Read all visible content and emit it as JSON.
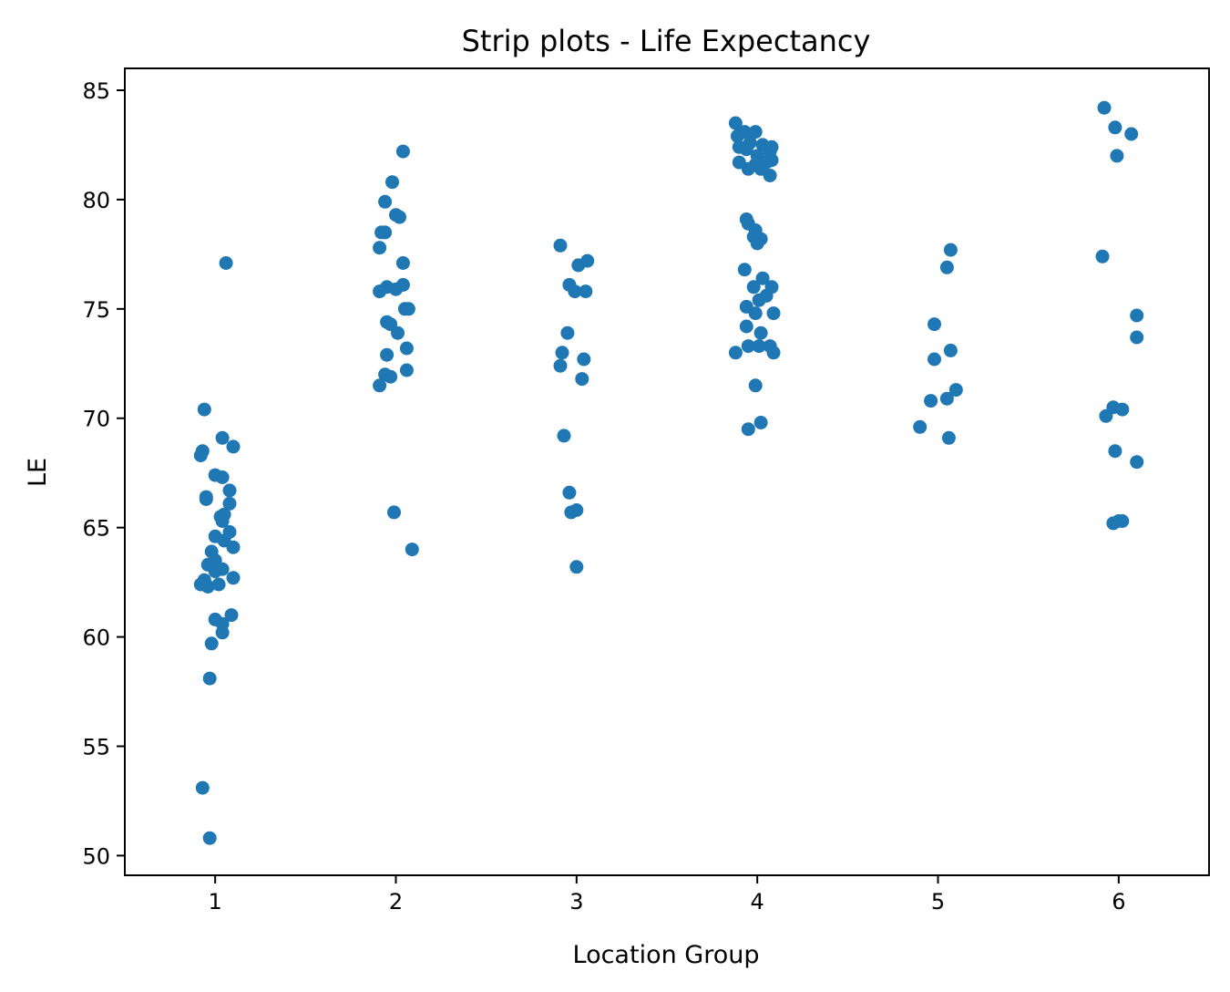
{
  "chart_data": {
    "type": "scatter",
    "title": "Strip plots - Life Expectancy",
    "xlabel": "Location Group",
    "ylabel": "LE",
    "xlim": [
      0.5,
      6.5
    ],
    "ylim": [
      49.1,
      86.0
    ],
    "x_ticks": [
      1,
      2,
      3,
      4,
      5,
      6
    ],
    "y_ticks": [
      50,
      55,
      60,
      65,
      70,
      75,
      80,
      85
    ],
    "grid": false,
    "legend": "none",
    "color": "#1f77b4",
    "series": [
      {
        "points": [
          [
            1.06,
            77.1
          ],
          [
            0.94,
            70.4
          ],
          [
            1.04,
            69.1
          ],
          [
            1.1,
            68.7
          ],
          [
            0.93,
            68.5
          ],
          [
            0.92,
            68.3
          ],
          [
            1.0,
            67.4
          ],
          [
            1.04,
            67.3
          ],
          [
            1.08,
            66.7
          ],
          [
            0.95,
            66.4
          ],
          [
            0.95,
            66.3
          ],
          [
            1.08,
            66.1
          ],
          [
            1.05,
            65.6
          ],
          [
            1.03,
            65.5
          ],
          [
            1.04,
            65.3
          ],
          [
            1.08,
            64.8
          ],
          [
            1.0,
            64.6
          ],
          [
            1.05,
            64.4
          ],
          [
            1.1,
            64.1
          ],
          [
            0.98,
            63.9
          ],
          [
            1.0,
            63.5
          ],
          [
            0.96,
            63.3
          ],
          [
            1.04,
            63.1
          ],
          [
            1.0,
            63.0
          ],
          [
            1.1,
            62.7
          ],
          [
            0.94,
            62.6
          ],
          [
            0.92,
            62.4
          ],
          [
            0.96,
            62.3
          ],
          [
            1.02,
            62.4
          ],
          [
            1.09,
            61.0
          ],
          [
            1.0,
            60.8
          ],
          [
            1.04,
            60.6
          ],
          [
            1.04,
            60.2
          ],
          [
            0.98,
            59.7
          ],
          [
            0.97,
            58.1
          ],
          [
            0.93,
            53.1
          ],
          [
            0.97,
            50.8
          ],
          [
            2.04,
            82.2
          ],
          [
            1.98,
            80.8
          ],
          [
            1.94,
            79.9
          ],
          [
            2.0,
            79.3
          ],
          [
            2.02,
            79.2
          ],
          [
            1.92,
            78.5
          ],
          [
            1.94,
            78.5
          ],
          [
            1.91,
            77.8
          ],
          [
            2.04,
            77.1
          ],
          [
            2.04,
            76.1
          ],
          [
            1.95,
            76.0
          ],
          [
            2.0,
            75.9
          ],
          [
            1.91,
            75.8
          ],
          [
            2.05,
            75.0
          ],
          [
            2.07,
            75.0
          ],
          [
            1.95,
            74.4
          ],
          [
            1.97,
            74.3
          ],
          [
            2.01,
            73.9
          ],
          [
            2.06,
            73.2
          ],
          [
            1.95,
            72.9
          ],
          [
            2.06,
            72.2
          ],
          [
            1.94,
            72.0
          ],
          [
            1.97,
            71.9
          ],
          [
            1.91,
            71.5
          ],
          [
            1.99,
            65.7
          ],
          [
            2.09,
            64.0
          ],
          [
            2.91,
            77.9
          ],
          [
            3.06,
            77.2
          ],
          [
            3.01,
            77.0
          ],
          [
            2.96,
            76.1
          ],
          [
            2.99,
            75.8
          ],
          [
            3.05,
            75.8
          ],
          [
            2.95,
            73.9
          ],
          [
            2.92,
            73.0
          ],
          [
            3.04,
            72.7
          ],
          [
            2.91,
            72.4
          ],
          [
            3.03,
            71.8
          ],
          [
            2.93,
            69.2
          ],
          [
            2.96,
            66.6
          ],
          [
            3.0,
            65.8
          ],
          [
            2.97,
            65.7
          ],
          [
            3.0,
            63.2
          ],
          [
            3.88,
            83.5
          ],
          [
            3.93,
            83.1
          ],
          [
            3.99,
            83.1
          ],
          [
            3.89,
            82.9
          ],
          [
            3.96,
            82.6
          ],
          [
            4.03,
            82.5
          ],
          [
            3.9,
            82.4
          ],
          [
            4.08,
            82.4
          ],
          [
            3.94,
            82.3
          ],
          [
            4.07,
            82.2
          ],
          [
            4.0,
            82.0
          ],
          [
            4.08,
            81.8
          ],
          [
            3.9,
            81.7
          ],
          [
            4.05,
            81.7
          ],
          [
            3.99,
            81.6
          ],
          [
            3.95,
            81.4
          ],
          [
            4.02,
            81.4
          ],
          [
            4.07,
            81.1
          ],
          [
            3.94,
            79.1
          ],
          [
            3.95,
            78.9
          ],
          [
            3.99,
            78.6
          ],
          [
            3.98,
            78.3
          ],
          [
            4.02,
            78.2
          ],
          [
            4.0,
            78.0
          ],
          [
            3.93,
            76.8
          ],
          [
            4.03,
            76.4
          ],
          [
            3.98,
            76.0
          ],
          [
            4.08,
            76.0
          ],
          [
            4.05,
            75.6
          ],
          [
            4.01,
            75.4
          ],
          [
            3.94,
            75.1
          ],
          [
            3.99,
            74.8
          ],
          [
            4.09,
            74.8
          ],
          [
            3.94,
            74.2
          ],
          [
            4.02,
            73.9
          ],
          [
            3.95,
            73.3
          ],
          [
            4.01,
            73.3
          ],
          [
            4.07,
            73.3
          ],
          [
            3.88,
            73.0
          ],
          [
            4.09,
            73.0
          ],
          [
            3.99,
            71.5
          ],
          [
            4.02,
            69.8
          ],
          [
            3.95,
            69.5
          ],
          [
            5.07,
            77.7
          ],
          [
            5.05,
            76.9
          ],
          [
            4.98,
            74.3
          ],
          [
            5.07,
            73.1
          ],
          [
            4.98,
            72.7
          ],
          [
            5.1,
            71.3
          ],
          [
            5.05,
            70.9
          ],
          [
            4.96,
            70.8
          ],
          [
            4.9,
            69.6
          ],
          [
            5.06,
            69.1
          ],
          [
            5.92,
            84.2
          ],
          [
            5.98,
            83.3
          ],
          [
            6.07,
            83.0
          ],
          [
            5.99,
            82.0
          ],
          [
            5.91,
            77.4
          ],
          [
            6.1,
            74.7
          ],
          [
            6.1,
            73.7
          ],
          [
            5.97,
            70.5
          ],
          [
            6.02,
            70.4
          ],
          [
            5.93,
            70.1
          ],
          [
            5.98,
            68.5
          ],
          [
            6.1,
            68.0
          ],
          [
            5.97,
            65.2
          ],
          [
            6.0,
            65.3
          ],
          [
            6.02,
            65.3
          ]
        ]
      }
    ]
  }
}
